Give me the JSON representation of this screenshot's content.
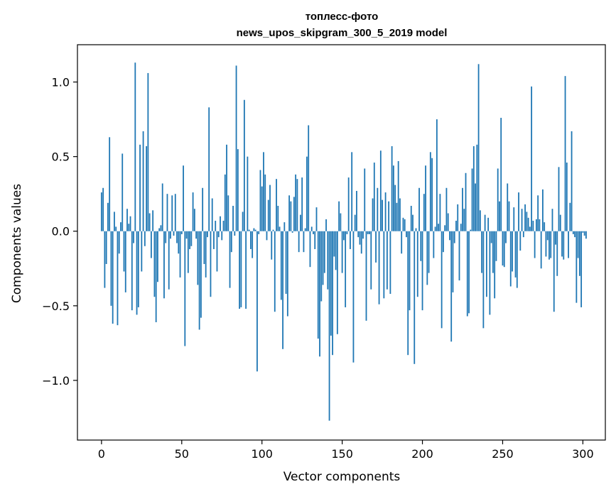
{
  "chart_data": {
    "type": "bar",
    "title": "топлесс-фото\nnews_upos_skipgram_300_5_2019 model",
    "title_lines": [
      "топлесс-фото",
      "news_upos_skipgram_300_5_2019 model"
    ],
    "xlabel": "Vector components",
    "ylabel": "Components values",
    "xlim": [
      -15,
      314
    ],
    "ylim": [
      -1.4,
      1.25
    ],
    "xticks": [
      0,
      50,
      100,
      150,
      200,
      250,
      300
    ],
    "xtick_labels": [
      "0",
      "50",
      "100",
      "150",
      "200",
      "250",
      "300"
    ],
    "yticks": [
      -1.0,
      -0.5,
      0.0,
      0.5,
      1.0
    ],
    "ytick_labels": [
      "−1.0",
      "−0.5",
      "0.0",
      "0.5",
      "1.0"
    ],
    "grid": false,
    "color": "#1f77b4",
    "values": [
      0.26,
      0.29,
      -0.38,
      -0.22,
      0.19,
      0.63,
      -0.5,
      -0.62,
      0.13,
      0.03,
      -0.63,
      -0.15,
      0.06,
      0.52,
      -0.27,
      -0.41,
      0.15,
      0.05,
      0.1,
      -0.53,
      -0.08,
      1.13,
      -0.56,
      -0.51,
      0.58,
      -0.27,
      0.67,
      -0.1,
      0.57,
      1.06,
      0.12,
      -0.18,
      0.14,
      -0.44,
      -0.61,
      -0.34,
      0.02,
      0.04,
      0.32,
      -0.45,
      -0.08,
      0.25,
      -0.39,
      -0.05,
      0.24,
      -0.03,
      0.25,
      -0.08,
      -0.15,
      -0.31,
      -0.02,
      0.44,
      -0.77,
      -0.05,
      -0.28,
      -0.12,
      -0.1,
      0.26,
      0.15,
      -0.05,
      -0.36,
      -0.66,
      -0.58,
      0.29,
      -0.22,
      -0.31,
      -0.04,
      0.83,
      -0.44,
      0.22,
      -0.12,
      0.07,
      -0.27,
      -0.04,
      0.1,
      -0.06,
      0.07,
      0.38,
      0.58,
      0.24,
      -0.38,
      -0.14,
      0.17,
      -0.03,
      1.11,
      0.55,
      -0.52,
      -0.51,
      0.13,
      0.88,
      -0.52,
      0.5,
      0.01,
      -0.12,
      -0.18,
      0.02,
      0.01,
      -0.94,
      -0.02,
      0.41,
      0.3,
      0.53,
      0.38,
      -0.06,
      0.21,
      0.31,
      -0.19,
      0.01,
      -0.54,
      0.35,
      0.17,
      0.03,
      -0.46,
      -0.79,
      0.06,
      -0.42,
      -0.57,
      0.24,
      0.2,
      -0.01,
      0.23,
      0.38,
      0.35,
      -0.14,
      0.11,
      0.36,
      -0.14,
      0.02,
      0.5,
      0.71,
      -0.24,
      0.03,
      -0.02,
      -0.12,
      0.16,
      -0.72,
      -0.84,
      -0.47,
      -0.36,
      -0.28,
      0.08,
      -0.39,
      -1.27,
      -0.7,
      -0.83,
      -0.17,
      -0.26,
      -0.69,
      0.2,
      0.12,
      -0.28,
      -0.06,
      -0.51,
      -0.02,
      0.36,
      -0.12,
      0.53,
      -0.88,
      0.11,
      0.27,
      -0.04,
      -0.09,
      -0.15,
      -0.05,
      0.42,
      -0.6,
      -0.02,
      -0.02,
      -0.39,
      0.22,
      0.46,
      -0.21,
      0.29,
      -0.49,
      0.54,
      0.21,
      -0.45,
      0.26,
      -0.39,
      0.2,
      -0.42,
      0.57,
      0.44,
      0.31,
      0.19,
      0.47,
      0.22,
      -0.15,
      0.09,
      0.08,
      -0.04,
      -0.83,
      -0.53,
      0.17,
      0.11,
      -0.89,
      0.02,
      -0.44,
      0.29,
      -0.2,
      -0.53,
      0.25,
      0.44,
      -0.36,
      -0.28,
      0.53,
      0.49,
      -0.18,
      0.03,
      0.75,
      0.05,
      0.25,
      -0.65,
      -0.14,
      0.04,
      0.29,
      0.12,
      -0.06,
      -0.74,
      -0.41,
      -0.08,
      0.07,
      0.18,
      -0.33,
      0.05,
      0.29,
      0.15,
      0.39,
      -0.57,
      -0.55,
      0.01,
      0.42,
      0.57,
      0.32,
      0.58,
      1.12,
      0.14,
      -0.28,
      -0.65,
      0.11,
      -0.44,
      0.09,
      -0.56,
      -0.08,
      -0.28,
      -0.45,
      -0.2,
      0.42,
      0.2,
      0.76,
      -0.23,
      -0.24,
      -0.08,
      0.32,
      0.2,
      -0.37,
      -0.27,
      0.16,
      -0.31,
      -0.38,
      0.26,
      -0.13,
      0.15,
      -0.04,
      0.18,
      0.13,
      0.09,
      0.03,
      0.97,
      0.07,
      -0.18,
      0.08,
      0.24,
      0.08,
      -0.25,
      0.28,
      0.06,
      -0.17,
      -0.06,
      -0.19,
      -0.18,
      0.15,
      -0.54,
      -0.09,
      -0.3,
      0.43,
      0.11,
      -0.17,
      -0.19,
      1.04,
      0.46,
      -0.18,
      0.19,
      0.67,
      -0.02,
      -0.04,
      -0.48,
      -0.18,
      -0.3,
      -0.51,
      -0.01,
      -0.03,
      -0.05
    ]
  }
}
